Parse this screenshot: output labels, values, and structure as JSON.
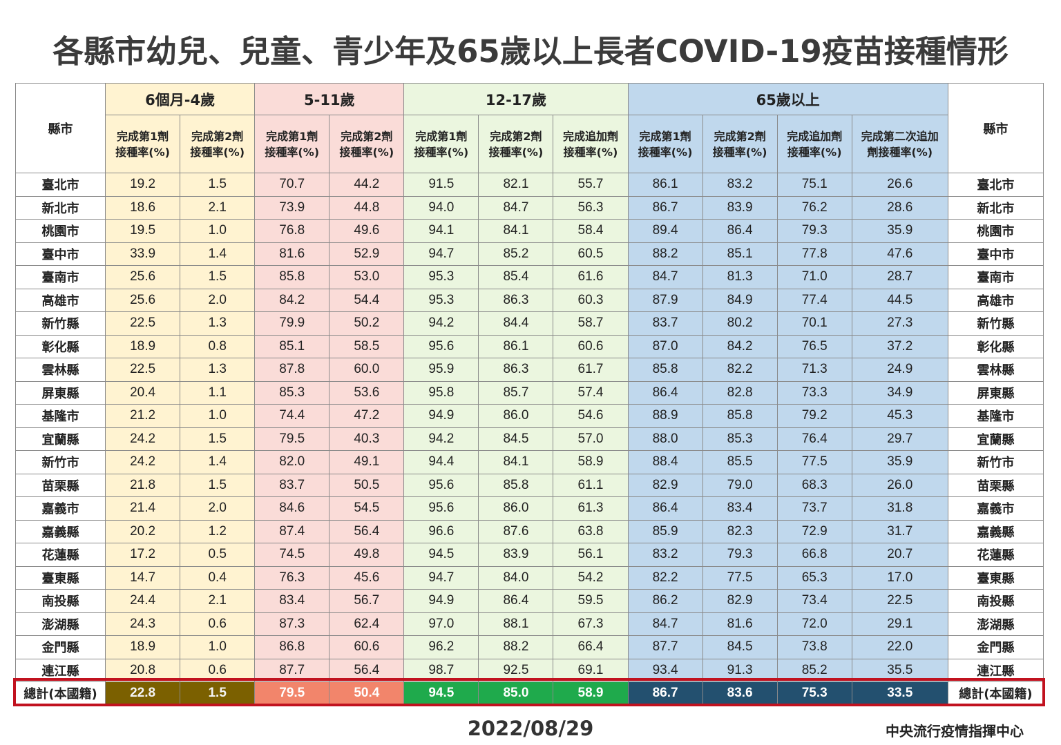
{
  "title": "各縣市幼兒、兒童、青少年及65歲以上長者COVID-19疫苗接種情形",
  "header": {
    "county_label_left": "縣市",
    "county_label_right": "縣市",
    "groups": [
      {
        "label": "6個月-4歲",
        "cols": [
          "完成第1劑\n接種率(%)",
          "完成第2劑\n接種率(%)"
        ]
      },
      {
        "label": "5-11歲",
        "cols": [
          "完成第1劑\n接種率(%)",
          "完成第2劑\n接種率(%)"
        ]
      },
      {
        "label": "12-17歲",
        "cols": [
          "完成第1劑\n接種率(%)",
          "完成第2劑\n接種率(%)",
          "完成追加劑\n接種率(%)"
        ]
      },
      {
        "label": "65歲以上",
        "cols": [
          "完成第1劑\n接種率(%)",
          "完成第2劑\n接種率(%)",
          "完成追加劑\n接種率(%)",
          "完成第二次追加\n劑接種率(%)"
        ]
      }
    ]
  },
  "colors": {
    "g1_bg": "#fff3d1",
    "g2_bg": "#fadcd8",
    "g3_bg": "#ebf6df",
    "g4_bg": "#c0d8ed",
    "total_g1": "#7b6000",
    "total_g2": "#f2856b",
    "total_g3": "#1faa4c",
    "total_g4": "#23506f",
    "total_frame": "#c1121f"
  },
  "rows": [
    {
      "county": "臺北市",
      "values": [
        "19.2",
        "1.5",
        "70.7",
        "44.2",
        "91.5",
        "82.1",
        "55.7",
        "86.1",
        "83.2",
        "75.1",
        "26.6"
      ]
    },
    {
      "county": "新北市",
      "values": [
        "18.6",
        "2.1",
        "73.9",
        "44.8",
        "94.0",
        "84.7",
        "56.3",
        "86.7",
        "83.9",
        "76.2",
        "28.6"
      ]
    },
    {
      "county": "桃園市",
      "values": [
        "19.5",
        "1.0",
        "76.8",
        "49.6",
        "94.1",
        "84.1",
        "58.4",
        "89.4",
        "86.4",
        "79.3",
        "35.9"
      ]
    },
    {
      "county": "臺中市",
      "values": [
        "33.9",
        "1.4",
        "81.6",
        "52.9",
        "94.7",
        "85.2",
        "60.5",
        "88.2",
        "85.1",
        "77.8",
        "47.6"
      ]
    },
    {
      "county": "臺南市",
      "values": [
        "25.6",
        "1.5",
        "85.8",
        "53.0",
        "95.3",
        "85.4",
        "61.6",
        "84.7",
        "81.3",
        "71.0",
        "28.7"
      ]
    },
    {
      "county": "高雄市",
      "values": [
        "25.6",
        "2.0",
        "84.2",
        "54.4",
        "95.3",
        "86.3",
        "60.3",
        "87.9",
        "84.9",
        "77.4",
        "44.5"
      ]
    },
    {
      "county": "新竹縣",
      "values": [
        "22.5",
        "1.3",
        "79.9",
        "50.2",
        "94.2",
        "84.4",
        "58.7",
        "83.7",
        "80.2",
        "70.1",
        "27.3"
      ]
    },
    {
      "county": "彰化縣",
      "values": [
        "18.9",
        "0.8",
        "85.1",
        "58.5",
        "95.6",
        "86.1",
        "60.6",
        "87.0",
        "84.2",
        "76.5",
        "37.2"
      ]
    },
    {
      "county": "雲林縣",
      "values": [
        "22.5",
        "1.3",
        "87.8",
        "60.0",
        "95.9",
        "86.3",
        "61.7",
        "85.8",
        "82.2",
        "71.3",
        "24.9"
      ]
    },
    {
      "county": "屏東縣",
      "values": [
        "20.4",
        "1.1",
        "85.3",
        "53.6",
        "95.8",
        "85.7",
        "57.4",
        "86.4",
        "82.8",
        "73.3",
        "34.9"
      ]
    },
    {
      "county": "基隆市",
      "values": [
        "21.2",
        "1.0",
        "74.4",
        "47.2",
        "94.9",
        "86.0",
        "54.6",
        "88.9",
        "85.8",
        "79.2",
        "45.3"
      ]
    },
    {
      "county": "宜蘭縣",
      "values": [
        "24.2",
        "1.5",
        "79.5",
        "40.3",
        "94.2",
        "84.5",
        "57.0",
        "88.0",
        "85.3",
        "76.4",
        "29.7"
      ]
    },
    {
      "county": "新竹市",
      "values": [
        "24.2",
        "1.4",
        "82.0",
        "49.1",
        "94.4",
        "84.1",
        "58.9",
        "88.4",
        "85.5",
        "77.5",
        "35.9"
      ]
    },
    {
      "county": "苗栗縣",
      "values": [
        "21.8",
        "1.5",
        "83.7",
        "50.5",
        "95.6",
        "85.8",
        "61.1",
        "82.9",
        "79.0",
        "68.3",
        "26.0"
      ]
    },
    {
      "county": "嘉義市",
      "values": [
        "21.4",
        "2.0",
        "84.6",
        "54.5",
        "95.6",
        "86.0",
        "61.3",
        "86.4",
        "83.4",
        "73.7",
        "31.8"
      ]
    },
    {
      "county": "嘉義縣",
      "values": [
        "20.2",
        "1.2",
        "87.4",
        "56.4",
        "96.6",
        "87.6",
        "63.8",
        "85.9",
        "82.3",
        "72.9",
        "31.7"
      ]
    },
    {
      "county": "花蓮縣",
      "values": [
        "17.2",
        "0.5",
        "74.5",
        "49.8",
        "94.5",
        "83.9",
        "56.1",
        "83.2",
        "79.3",
        "66.8",
        "20.7"
      ]
    },
    {
      "county": "臺東縣",
      "values": [
        "14.7",
        "0.4",
        "76.3",
        "45.6",
        "94.7",
        "84.0",
        "54.2",
        "82.2",
        "77.5",
        "65.3",
        "17.0"
      ]
    },
    {
      "county": "南投縣",
      "values": [
        "24.4",
        "2.1",
        "83.4",
        "56.7",
        "94.9",
        "86.4",
        "59.5",
        "86.2",
        "82.9",
        "73.4",
        "22.5"
      ]
    },
    {
      "county": "澎湖縣",
      "values": [
        "24.3",
        "0.6",
        "87.3",
        "62.4",
        "97.0",
        "88.1",
        "67.3",
        "84.7",
        "81.6",
        "72.0",
        "29.1"
      ]
    },
    {
      "county": "金門縣",
      "values": [
        "18.9",
        "1.0",
        "86.8",
        "60.6",
        "96.2",
        "88.2",
        "66.4",
        "87.7",
        "84.5",
        "73.8",
        "22.0"
      ]
    },
    {
      "county": "連江縣",
      "values": [
        "20.8",
        "0.6",
        "87.7",
        "56.4",
        "98.7",
        "92.5",
        "69.1",
        "93.4",
        "91.3",
        "85.2",
        "35.5"
      ]
    }
  ],
  "total": {
    "county": "總計(本國籍)",
    "values": [
      "22.8",
      "1.5",
      "79.5",
      "50.4",
      "94.5",
      "85.0",
      "58.9",
      "86.7",
      "83.6",
      "75.3",
      "33.5"
    ]
  },
  "date": "2022/08/29",
  "source": "中央流行疫情指揮中心"
}
